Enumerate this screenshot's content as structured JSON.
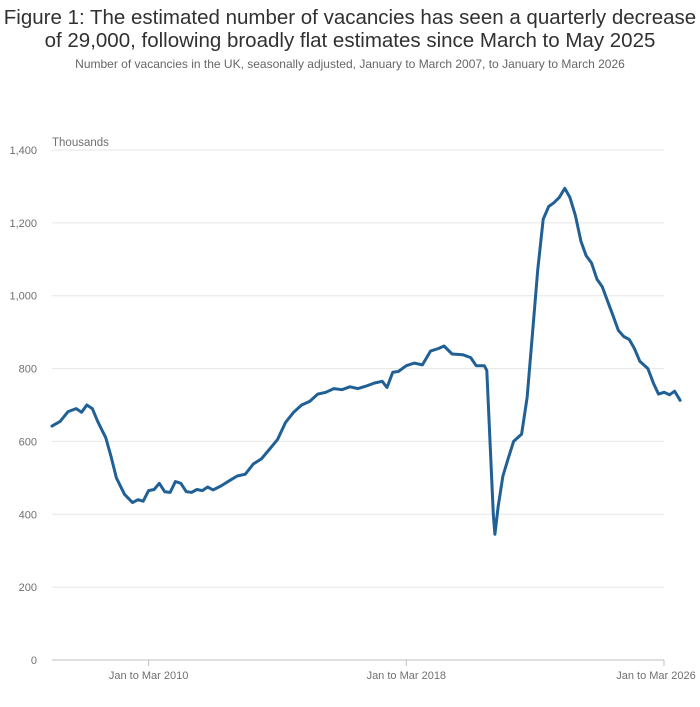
{
  "chart_data": {
    "type": "line",
    "title": "Figure 1: The estimated number of vacancies has seen a quarterly decrease of 29,000, following broadly flat estimates since March to May 2025",
    "subtitle": "Number of vacancies in the UK, seasonally adjusted, January to March 2007, to January to March 2026",
    "y_unit_label": "Thousands",
    "ylim": [
      0,
      1400
    ],
    "y_ticks": [
      0,
      200,
      400,
      600,
      800,
      1000,
      1200,
      1400
    ],
    "y_tick_labels": [
      "0",
      "200",
      "400",
      "600",
      "800",
      "1,000",
      "1,200",
      "1,400"
    ],
    "x_ticks": [
      {
        "t": 2010,
        "label": "Jan to Mar 2010"
      },
      {
        "t": 2018,
        "label": "Jan to Mar 2018"
      },
      {
        "t": 2026,
        "label": "Jan to Mar 2026"
      }
    ],
    "xlim": [
      2007,
      2026
    ],
    "grid": true,
    "line_color": "#206095",
    "series": [
      {
        "points": [
          [
            2007.0,
            642
          ],
          [
            2007.25,
            655
          ],
          [
            2007.5,
            682
          ],
          [
            2007.75,
            690
          ],
          [
            2007.92,
            680
          ],
          [
            2008.08,
            700
          ],
          [
            2008.25,
            690
          ],
          [
            2008.42,
            655
          ],
          [
            2008.67,
            610
          ],
          [
            2008.83,
            560
          ],
          [
            2009.0,
            500
          ],
          [
            2009.25,
            455
          ],
          [
            2009.5,
            432
          ],
          [
            2009.67,
            440
          ],
          [
            2009.83,
            436
          ],
          [
            2010.0,
            465
          ],
          [
            2010.17,
            468
          ],
          [
            2010.33,
            485
          ],
          [
            2010.5,
            462
          ],
          [
            2010.67,
            460
          ],
          [
            2010.83,
            490
          ],
          [
            2011.0,
            485
          ],
          [
            2011.17,
            462
          ],
          [
            2011.33,
            460
          ],
          [
            2011.5,
            468
          ],
          [
            2011.67,
            465
          ],
          [
            2011.83,
            475
          ],
          [
            2012.0,
            467
          ],
          [
            2012.25,
            478
          ],
          [
            2012.5,
            492
          ],
          [
            2012.75,
            505
          ],
          [
            2013.0,
            510
          ],
          [
            2013.25,
            538
          ],
          [
            2013.5,
            552
          ],
          [
            2013.75,
            578
          ],
          [
            2014.0,
            605
          ],
          [
            2014.25,
            652
          ],
          [
            2014.5,
            680
          ],
          [
            2014.75,
            700
          ],
          [
            2015.0,
            710
          ],
          [
            2015.25,
            730
          ],
          [
            2015.5,
            735
          ],
          [
            2015.75,
            745
          ],
          [
            2016.0,
            742
          ],
          [
            2016.25,
            750
          ],
          [
            2016.5,
            745
          ],
          [
            2016.75,
            752
          ],
          [
            2017.0,
            760
          ],
          [
            2017.25,
            765
          ],
          [
            2017.4,
            748
          ],
          [
            2017.58,
            790
          ],
          [
            2017.75,
            792
          ],
          [
            2018.0,
            808
          ],
          [
            2018.25,
            815
          ],
          [
            2018.5,
            810
          ],
          [
            2018.75,
            848
          ],
          [
            2019.0,
            855
          ],
          [
            2019.17,
            862
          ],
          [
            2019.42,
            840
          ],
          [
            2019.75,
            838
          ],
          [
            2020.0,
            830
          ],
          [
            2020.17,
            808
          ],
          [
            2020.42,
            808
          ],
          [
            2020.5,
            795
          ],
          [
            2020.7,
            400
          ],
          [
            2020.75,
            345
          ],
          [
            2020.85,
            420
          ],
          [
            2021.0,
            505
          ],
          [
            2021.17,
            555
          ],
          [
            2021.33,
            600
          ],
          [
            2021.58,
            620
          ],
          [
            2021.75,
            720
          ],
          [
            2021.92,
            900
          ],
          [
            2022.08,
            1070
          ],
          [
            2022.25,
            1210
          ],
          [
            2022.42,
            1245
          ],
          [
            2022.58,
            1255
          ],
          [
            2022.75,
            1270
          ],
          [
            2022.92,
            1295
          ],
          [
            2023.08,
            1270
          ],
          [
            2023.25,
            1220
          ],
          [
            2023.42,
            1150
          ],
          [
            2023.58,
            1110
          ],
          [
            2023.75,
            1090
          ],
          [
            2023.92,
            1045
          ],
          [
            2024.08,
            1025
          ],
          [
            2024.25,
            985
          ],
          [
            2024.42,
            945
          ],
          [
            2024.58,
            905
          ],
          [
            2024.75,
            888
          ],
          [
            2024.92,
            880
          ],
          [
            2025.08,
            855
          ],
          [
            2025.25,
            820
          ],
          [
            2025.5,
            800
          ],
          [
            2025.67,
            760
          ],
          [
            2025.83,
            730
          ],
          [
            2026.0,
            735
          ],
          [
            2026.17,
            728
          ],
          [
            2026.33,
            738
          ],
          [
            2026.5,
            713
          ]
        ]
      }
    ]
  }
}
